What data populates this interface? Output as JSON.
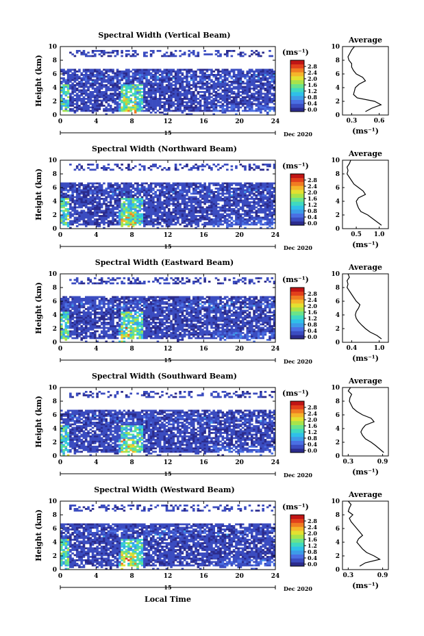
{
  "figure": {
    "common_xlabel": "Local Time",
    "colorbar_unit": "(ms⁻¹)",
    "date_label": "Dec 2020",
    "day_label": "15",
    "colorbar_ticks": [
      "0.0",
      "0.4",
      "0.8",
      "1.2",
      "1.6",
      "2.0",
      "2.4",
      "2.8"
    ],
    "colorbar_colors": [
      "#2b2b8c",
      "#3b4cc0",
      "#4a6fe3",
      "#3d9be8",
      "#2fc0e8",
      "#3fd9c0",
      "#6ae38a",
      "#a8e34a",
      "#e3e030",
      "#f5b52a",
      "#f07c22",
      "#e2401b",
      "#c01515"
    ]
  },
  "chart_data": [
    {
      "type": "heatmap",
      "title": "Spectral Width (Vertical Beam)",
      "ylabel": "Height (km)",
      "xlim": [
        0,
        24
      ],
      "ylim": [
        0,
        10
      ],
      "xticks": [
        0,
        4,
        8,
        12,
        16,
        20,
        24
      ],
      "yticks": [
        0,
        2,
        4,
        6,
        8,
        10
      ],
      "zlim": [
        0,
        3.0
      ],
      "profile": {
        "title": "Average",
        "xlabel": "(ms⁻¹)",
        "xlim": [
          0.2,
          0.7
        ],
        "xticks": [
          0.3,
          0.6
        ],
        "xticklabels": [
          "0.3",
          "0.6"
        ],
        "heights": [
          0.5,
          1,
          1.5,
          2,
          2.5,
          3,
          3.5,
          4,
          4.5,
          5,
          5.5,
          6,
          6.5,
          7,
          7.5,
          8,
          8.5,
          9,
          9.5,
          10
        ],
        "values": [
          0.45,
          0.52,
          0.62,
          0.55,
          0.36,
          0.32,
          0.33,
          0.34,
          0.38,
          0.45,
          0.42,
          0.35,
          0.32,
          0.3,
          0.3,
          0.27,
          0.26,
          0.28,
          0.3,
          0.33
        ]
      }
    },
    {
      "type": "heatmap",
      "title": "Spectral Width (Northward Beam)",
      "ylabel": "Height (km)",
      "xlim": [
        0,
        24
      ],
      "ylim": [
        0,
        10
      ],
      "xticks": [
        0,
        4,
        8,
        12,
        16,
        20,
        24
      ],
      "yticks": [
        0,
        2,
        4,
        6,
        8,
        10
      ],
      "zlim": [
        0,
        3.0
      ],
      "profile": {
        "title": "Average",
        "xlabel": "(ms⁻¹)",
        "xlim": [
          0.2,
          1.2
        ],
        "xticks": [
          0.5,
          1.0
        ],
        "xticklabels": [
          "0.5",
          "1.0"
        ],
        "heights": [
          0.5,
          1,
          1.5,
          2,
          2.5,
          3,
          3.5,
          4,
          4.5,
          5,
          5.5,
          6,
          6.5,
          7,
          7.5,
          8,
          8.5,
          9,
          9.5,
          10
        ],
        "values": [
          1.05,
          0.95,
          0.85,
          0.75,
          0.6,
          0.55,
          0.52,
          0.5,
          0.55,
          0.7,
          0.65,
          0.55,
          0.45,
          0.4,
          0.35,
          0.3,
          0.32,
          0.3,
          0.35,
          0.38
        ]
      }
    },
    {
      "type": "heatmap",
      "title": "Spectral Width (Eastward Beam)",
      "ylabel": "Height (km)",
      "xlim": [
        0,
        24
      ],
      "ylim": [
        0,
        10
      ],
      "xticks": [
        0,
        4,
        8,
        12,
        16,
        20,
        24
      ],
      "yticks": [
        0,
        2,
        4,
        6,
        8,
        10
      ],
      "zlim": [
        0,
        3.0
      ],
      "profile": {
        "title": "Average",
        "xlabel": "(ms⁻¹)",
        "xlim": [
          0.2,
          1.2
        ],
        "xticks": [
          0.4,
          1.0
        ],
        "xticklabels": [
          "0.4",
          "1.0"
        ],
        "heights": [
          0.5,
          1,
          1.5,
          2,
          2.5,
          3,
          3.5,
          4,
          4.5,
          5,
          5.5,
          6,
          6.5,
          7,
          7.5,
          8,
          8.5,
          9,
          9.5,
          10
        ],
        "values": [
          1.05,
          0.95,
          0.8,
          0.7,
          0.62,
          0.55,
          0.5,
          0.48,
          0.5,
          0.55,
          0.58,
          0.5,
          0.45,
          0.4,
          0.35,
          0.3,
          0.32,
          0.3,
          0.35,
          0.32
        ]
      }
    },
    {
      "type": "heatmap",
      "title": "Spectral Width (Southward Beam)",
      "ylabel": "Height (km)",
      "xlim": [
        0,
        24
      ],
      "ylim": [
        0,
        10
      ],
      "xticks": [
        0,
        4,
        8,
        12,
        16,
        20,
        24
      ],
      "yticks": [
        0,
        2,
        4,
        6,
        8,
        10
      ],
      "zlim": [
        0,
        3.0
      ],
      "profile": {
        "title": "Average",
        "xlabel": "(ms⁻¹)",
        "xlim": [
          0.2,
          1.0
        ],
        "xticks": [
          0.3,
          0.9
        ],
        "xticklabels": [
          "0.3",
          "0.9"
        ],
        "heights": [
          0.5,
          1,
          1.5,
          2,
          2.5,
          3,
          3.5,
          4,
          4.5,
          5,
          5.5,
          6,
          6.5,
          7,
          7.5,
          8,
          8.5,
          9,
          9.5,
          10
        ],
        "values": [
          0.92,
          0.85,
          0.78,
          0.7,
          0.6,
          0.55,
          0.52,
          0.55,
          0.6,
          0.75,
          0.7,
          0.55,
          0.45,
          0.38,
          0.35,
          0.32,
          0.33,
          0.36,
          0.3,
          0.34
        ]
      }
    },
    {
      "type": "heatmap",
      "title": "Spectral Width (Westward Beam)",
      "ylabel": "Height (km)",
      "xlim": [
        0,
        24
      ],
      "ylim": [
        0,
        10
      ],
      "xticks": [
        0,
        4,
        8,
        12,
        16,
        20,
        24
      ],
      "yticks": [
        0,
        2,
        4,
        6,
        8,
        10
      ],
      "zlim": [
        0,
        3.0
      ],
      "profile": {
        "title": "Average",
        "xlabel": "(ms⁻¹)",
        "xlim": [
          0.2,
          1.0
        ],
        "xticks": [
          0.3,
          0.9
        ],
        "xticklabels": [
          "0.3",
          "0.9"
        ],
        "heights": [
          0.5,
          1,
          1.5,
          2,
          2.5,
          3,
          3.5,
          4,
          4.5,
          5,
          5.5,
          6,
          6.5,
          7,
          7.5,
          8,
          8.5,
          9,
          9.5,
          10
        ],
        "values": [
          0.5,
          0.6,
          0.85,
          0.75,
          0.62,
          0.55,
          0.5,
          0.45,
          0.48,
          0.55,
          0.5,
          0.45,
          0.4,
          0.35,
          0.32,
          0.38,
          0.3,
          0.32,
          0.35,
          0.3
        ]
      }
    }
  ]
}
